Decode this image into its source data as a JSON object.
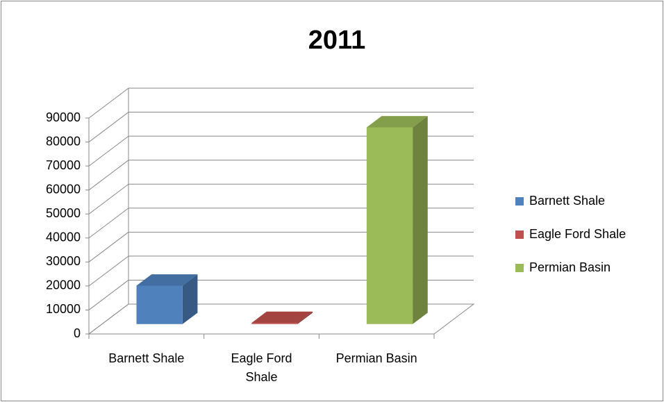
{
  "chart_data": {
    "type": "bar3d",
    "title": "2011",
    "categories": [
      "Barnett Shale",
      "Eagle Ford Shale",
      "Permian Basin"
    ],
    "values": [
      16000,
      500,
      82000
    ],
    "colors": [
      "#4f81bd",
      "#c0504d",
      "#9bbb59"
    ],
    "ylim": [
      0,
      90000
    ],
    "yticks": [
      0,
      10000,
      20000,
      30000,
      40000,
      50000,
      60000,
      70000,
      80000,
      90000
    ],
    "grid": true,
    "legend": "right"
  }
}
